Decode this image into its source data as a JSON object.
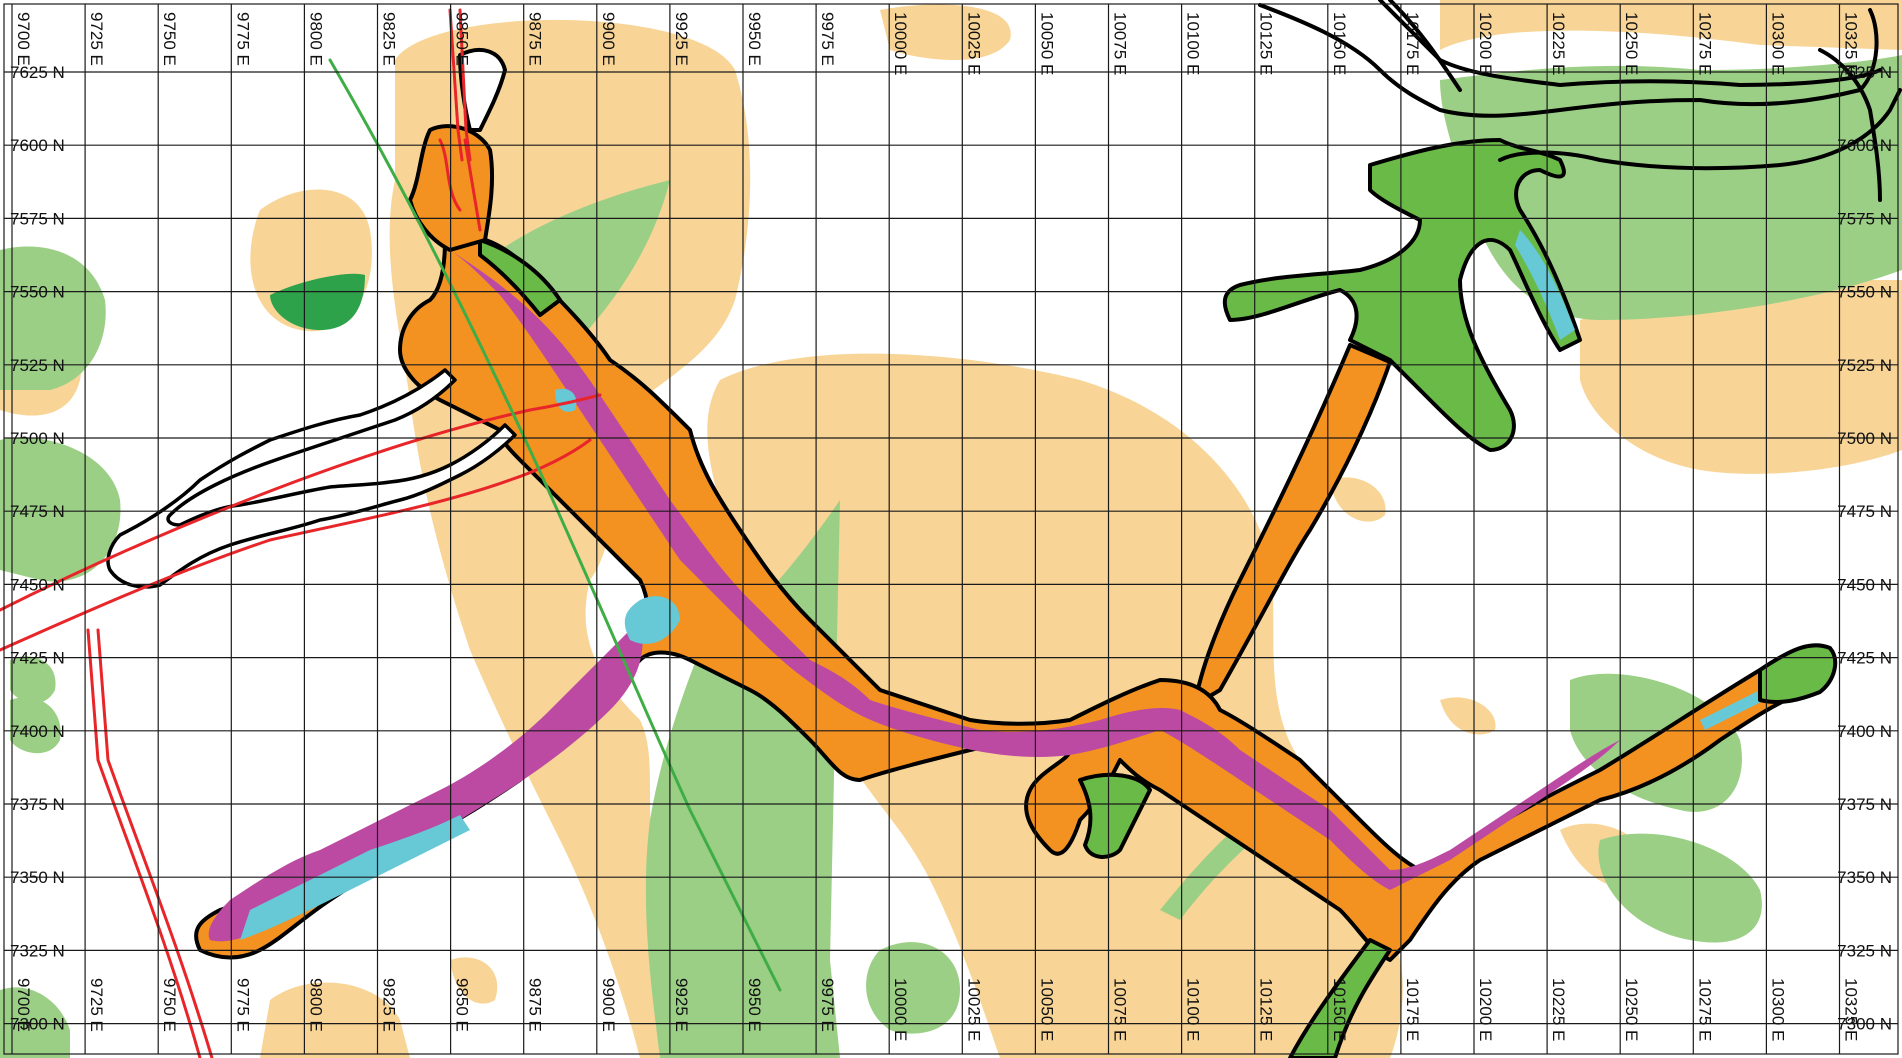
{
  "map": {
    "colors": {
      "background": "#ffffff",
      "grid": "#1a1a1a",
      "tan_zone": "#f8d596",
      "light_green_zone": "#9ccf86",
      "mid_green_zone": "#6aba48",
      "dark_green_zone": "#2ea24a",
      "orange_zone": "#f39121",
      "magenta_zone": "#bc4aa3",
      "cyan_zone": "#67c8d6",
      "workings_outline": "#000000",
      "red_line": "#e8262a",
      "green_line": "#3fad46"
    },
    "eastings": [
      "9700 E",
      "9725 E",
      "9750 E",
      "9775 E",
      "9800 E",
      "9825 E",
      "9850 E",
      "9875 E",
      "9900 E",
      "9925 E",
      "9950 E",
      "9975 E",
      "10000 E",
      "10025 E",
      "10050 E",
      "10075 E",
      "10100 E",
      "10125 E",
      "10150 E",
      "10175 E",
      "10200 E",
      "10225 E",
      "10250 E",
      "10275 E",
      "10300 E",
      "10325 E"
    ],
    "northings": [
      "7625 N",
      "7600 N",
      "7575 N",
      "7550 N",
      "7525 N",
      "7500 N",
      "7475 N",
      "7450 N",
      "7425 N",
      "7400 N",
      "7375 N",
      "7350 N",
      "7325 N",
      "7300 N"
    ]
  }
}
